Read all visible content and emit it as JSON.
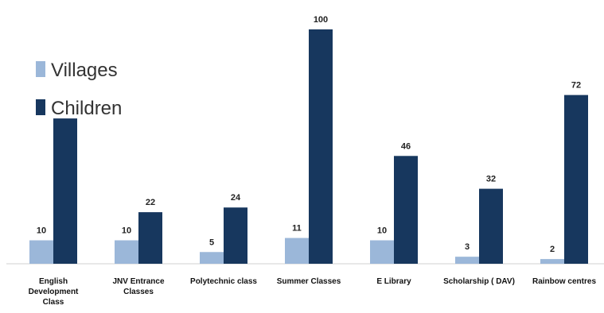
{
  "chart_data": {
    "type": "bar",
    "categories": [
      "English Development Class",
      "JNV Entrance Classes",
      "Polytechnic class",
      "Summer Classes",
      "E Library",
      "Scholarship ( DAV)",
      "Rainbow centres"
    ],
    "category_lines": [
      [
        "English",
        "Development",
        "Class"
      ],
      [
        "JNV Entrance",
        "Classes"
      ],
      [
        "Polytechnic class"
      ],
      [
        "Summer Classes"
      ],
      [
        "E Library"
      ],
      [
        "Scholarship ( DAV)"
      ],
      [
        "Rainbow centres"
      ]
    ],
    "series": [
      {
        "name": "Villages",
        "color": "#9bb7d9",
        "values": [
          10,
          10,
          5,
          11,
          10,
          3,
          2
        ]
      },
      {
        "name": "Children",
        "color": "#17375e",
        "values": [
          62,
          22,
          24,
          100,
          46,
          32,
          72
        ]
      }
    ],
    "value_labels": [
      [
        "10",
        "10",
        "5",
        "11",
        "10",
        "3",
        "2"
      ],
      [
        "",
        "22",
        "24",
        "100",
        "46",
        "32",
        "72"
      ]
    ],
    "ylim": [
      0,
      100
    ],
    "grid": false,
    "legend_position": "top-left"
  }
}
